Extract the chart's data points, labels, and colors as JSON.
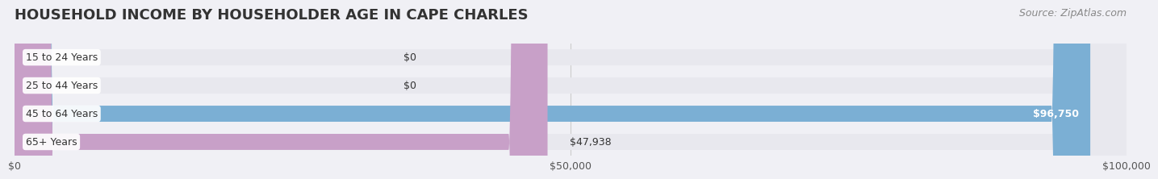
{
  "title": "HOUSEHOLD INCOME BY HOUSEHOLDER AGE IN CAPE CHARLES",
  "source": "Source: ZipAtlas.com",
  "categories": [
    "15 to 24 Years",
    "25 to 44 Years",
    "45 to 64 Years",
    "65+ Years"
  ],
  "values": [
    0,
    0,
    96750,
    47938
  ],
  "bar_colors": [
    "#f5c5a0",
    "#f5a0a8",
    "#7bafd4",
    "#c8a0c8"
  ],
  "bar_labels": [
    "$0",
    "$0",
    "$96,750",
    "$47,938"
  ],
  "label_inside": [
    false,
    false,
    true,
    false
  ],
  "xlim": [
    0,
    100000
  ],
  "xticks": [
    0,
    50000,
    100000
  ],
  "xtick_labels": [
    "$0",
    "$50,000",
    "$100,000"
  ],
  "background_color": "#f0f0f5",
  "bar_background_color": "#e8e8ee",
  "title_fontsize": 13,
  "source_fontsize": 9,
  "label_fontsize": 9,
  "tick_fontsize": 9,
  "category_fontsize": 9,
  "bar_height": 0.55
}
